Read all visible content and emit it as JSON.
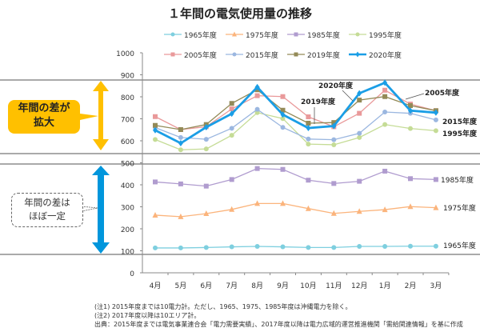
{
  "chart_data": {
    "type": "line",
    "title": "１年間の電気使用量の推移",
    "xlabel": "",
    "ylabel": "",
    "ylim": [
      0,
      1000
    ],
    "yticks": [
      "0",
      "100",
      "200",
      "300",
      "400",
      "500",
      "600",
      "700",
      "800",
      "900",
      "1000"
    ],
    "categories": [
      "4月",
      "5月",
      "6月",
      "7月",
      "8月",
      "9月",
      "10月",
      "11月",
      "12月",
      "1月",
      "2月",
      "3月"
    ],
    "legend_position": "top",
    "series": [
      {
        "name": "1965年度",
        "color": "#7ecfdf",
        "marker": "circle",
        "values": [
          113,
          113,
          115,
          118,
          120,
          118,
          115,
          115,
          120,
          120,
          121,
          121
        ]
      },
      {
        "name": "1975年度",
        "color": "#fbb47c",
        "marker": "triangle",
        "values": [
          262,
          255,
          269,
          288,
          315,
          315,
          292,
          270,
          279,
          287,
          301,
          296
        ]
      },
      {
        "name": "1985年度",
        "color": "#b09ccf",
        "marker": "square",
        "values": [
          413,
          404,
          394,
          424,
          474,
          470,
          421,
          406,
          416,
          462,
          428,
          424
        ]
      },
      {
        "name": "1995年度",
        "color": "#c5dc96",
        "marker": "circle",
        "values": [
          606,
          559,
          563,
          625,
          728,
          701,
          585,
          582,
          615,
          674,
          656,
          646
        ]
      },
      {
        "name": "2005年度",
        "color": "#e9999a",
        "marker": "square",
        "values": [
          710,
          651,
          664,
          745,
          805,
          801,
          709,
          664,
          725,
          830,
          767,
          737
        ]
      },
      {
        "name": "2015年度",
        "color": "#9bb7e0",
        "marker": "circle",
        "values": [
          660,
          615,
          607,
          657,
          743,
          661,
          608,
          605,
          634,
          731,
          725,
          695
        ]
      },
      {
        "name": "2019年度",
        "color": "#938a57",
        "marker": "square",
        "values": [
          670,
          651,
          674,
          770,
          832,
          739,
          680,
          683,
          785,
          801,
          760,
          737
        ]
      },
      {
        "name": "2020年度",
        "color": "#1a9ee6",
        "marker": "diamond",
        "values": [
          648,
          589,
          662,
          723,
          844,
          719,
          658,
          667,
          816,
          864,
          737,
          728
        ]
      }
    ],
    "annotations": {
      "label_2020": "2020年度",
      "label_2019": "2019年度",
      "label_2005": "2005年度",
      "label_2015": "2015年度",
      "label_1995": "1995年度",
      "label_1985": "1985年度",
      "label_1975": "1975年度",
      "label_1965": "1965年度",
      "callout_top_line1": "年間の差が",
      "callout_top_line2": "拡大",
      "callout_bottom_line1": "年間の差は",
      "callout_bottom_line2": "ほぼ一定"
    }
  },
  "notes": [
    "(注1) 2015年度までは10電力計。ただし、1965、1975、1985年度は沖縄電力を除く。",
    "(注2) 2017年度以降は10エリア計。",
    "出典：2015年度までは電気事業連合会「電力需要実績」、2017年度以降は電力広域的運営推進機関「需給関連情報」を基に作成"
  ]
}
